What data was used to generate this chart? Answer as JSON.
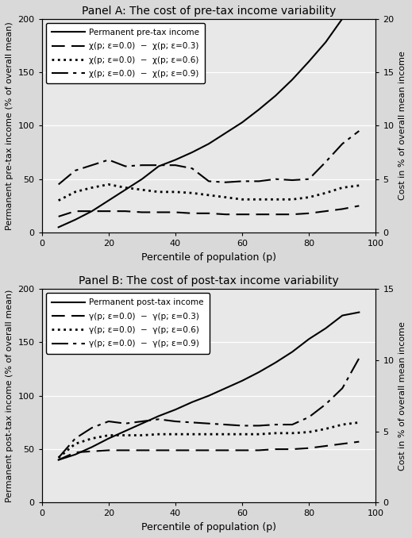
{
  "panel_a": {
    "title": "Panel A: The cost of pre-tax income variability",
    "ylabel_left": "Permanent pre-tax income (% of overall mean)",
    "ylabel_right": "Cost in % of overall mean income",
    "xlabel": "Percentile of population (p)",
    "ylim_left": [
      0,
      200
    ],
    "ylim_right": [
      0,
      20
    ],
    "yticks_left": [
      0,
      50,
      100,
      150,
      200
    ],
    "yticks_right": [
      0,
      5,
      10,
      15,
      20
    ],
    "xlim": [
      0,
      100
    ],
    "xticks": [
      0,
      20,
      40,
      60,
      80,
      100
    ],
    "legend_labels": [
      "Permanent pre-tax income",
      "χ(p; ε=0.0)  −  χ(p; ε=0.3)",
      "χ(p; ε=0.0)  −  χ(p; ε=0.6)",
      "χ(p; ε=0.0)  −  χ(p; ε=0.9)"
    ],
    "x": [
      5,
      10,
      15,
      20,
      25,
      30,
      35,
      40,
      45,
      50,
      55,
      60,
      65,
      70,
      75,
      80,
      85,
      90,
      95
    ],
    "permanent": [
      5,
      12,
      20,
      30,
      40,
      50,
      62,
      68,
      75,
      83,
      93,
      103,
      115,
      128,
      143,
      160,
      178,
      200,
      205
    ],
    "cost_03": [
      15,
      20,
      20,
      20,
      20,
      19,
      19,
      19,
      18,
      18,
      17,
      17,
      17,
      17,
      17,
      18,
      20,
      22,
      25
    ],
    "cost_06": [
      30,
      38,
      42,
      45,
      42,
      40,
      38,
      38,
      37,
      35,
      33,
      31,
      31,
      31,
      31,
      33,
      37,
      42,
      44
    ],
    "cost_09": [
      45,
      58,
      63,
      68,
      62,
      63,
      63,
      63,
      60,
      48,
      47,
      48,
      48,
      50,
      49,
      50,
      66,
      83,
      95
    ]
  },
  "panel_b": {
    "title": "Panel B: The cost of post-tax income variability",
    "ylabel_left": "Permanent post-tax income (% of overall mean)",
    "ylabel_right": "Cost in % of overall mean income",
    "xlabel": "Percentile of population (p)",
    "ylim_left": [
      0,
      200
    ],
    "ylim_right": [
      0,
      15
    ],
    "yticks_left": [
      0,
      50,
      100,
      150,
      200
    ],
    "yticks_right": [
      0,
      5,
      10,
      15
    ],
    "xlim": [
      0,
      100
    ],
    "xticks": [
      0,
      20,
      40,
      60,
      80,
      100
    ],
    "legend_labels": [
      "Permanent post-tax income",
      "γ(p; ε=0.0)  −  γ(p; ε=0.3)",
      "γ(p; ε=0.0)  −  γ(p; ε=0.6)",
      "γ(p; ε=0.0)  −  γ(p; ε=0.9)"
    ],
    "x": [
      5,
      10,
      15,
      20,
      25,
      30,
      35,
      40,
      45,
      50,
      55,
      60,
      65,
      70,
      75,
      80,
      85,
      90,
      95
    ],
    "permanent": [
      40,
      45,
      52,
      60,
      67,
      74,
      81,
      87,
      94,
      100,
      107,
      114,
      122,
      131,
      141,
      153,
      163,
      175,
      178
    ],
    "cost_03": [
      40,
      47,
      48,
      49,
      49,
      49,
      49,
      49,
      49,
      49,
      49,
      49,
      49,
      50,
      50,
      51,
      53,
      55,
      57
    ],
    "cost_06": [
      42,
      55,
      60,
      63,
      63,
      63,
      64,
      64,
      64,
      64,
      64,
      64,
      64,
      65,
      65,
      66,
      69,
      73,
      75
    ],
    "cost_09": [
      42,
      60,
      70,
      76,
      74,
      76,
      78,
      76,
      75,
      74,
      73,
      72,
      72,
      73,
      73,
      80,
      92,
      107,
      135
    ]
  },
  "bg_color": "#d9d9d9",
  "plot_bg_color": "#e8e8e8",
  "line_color": "#000000"
}
